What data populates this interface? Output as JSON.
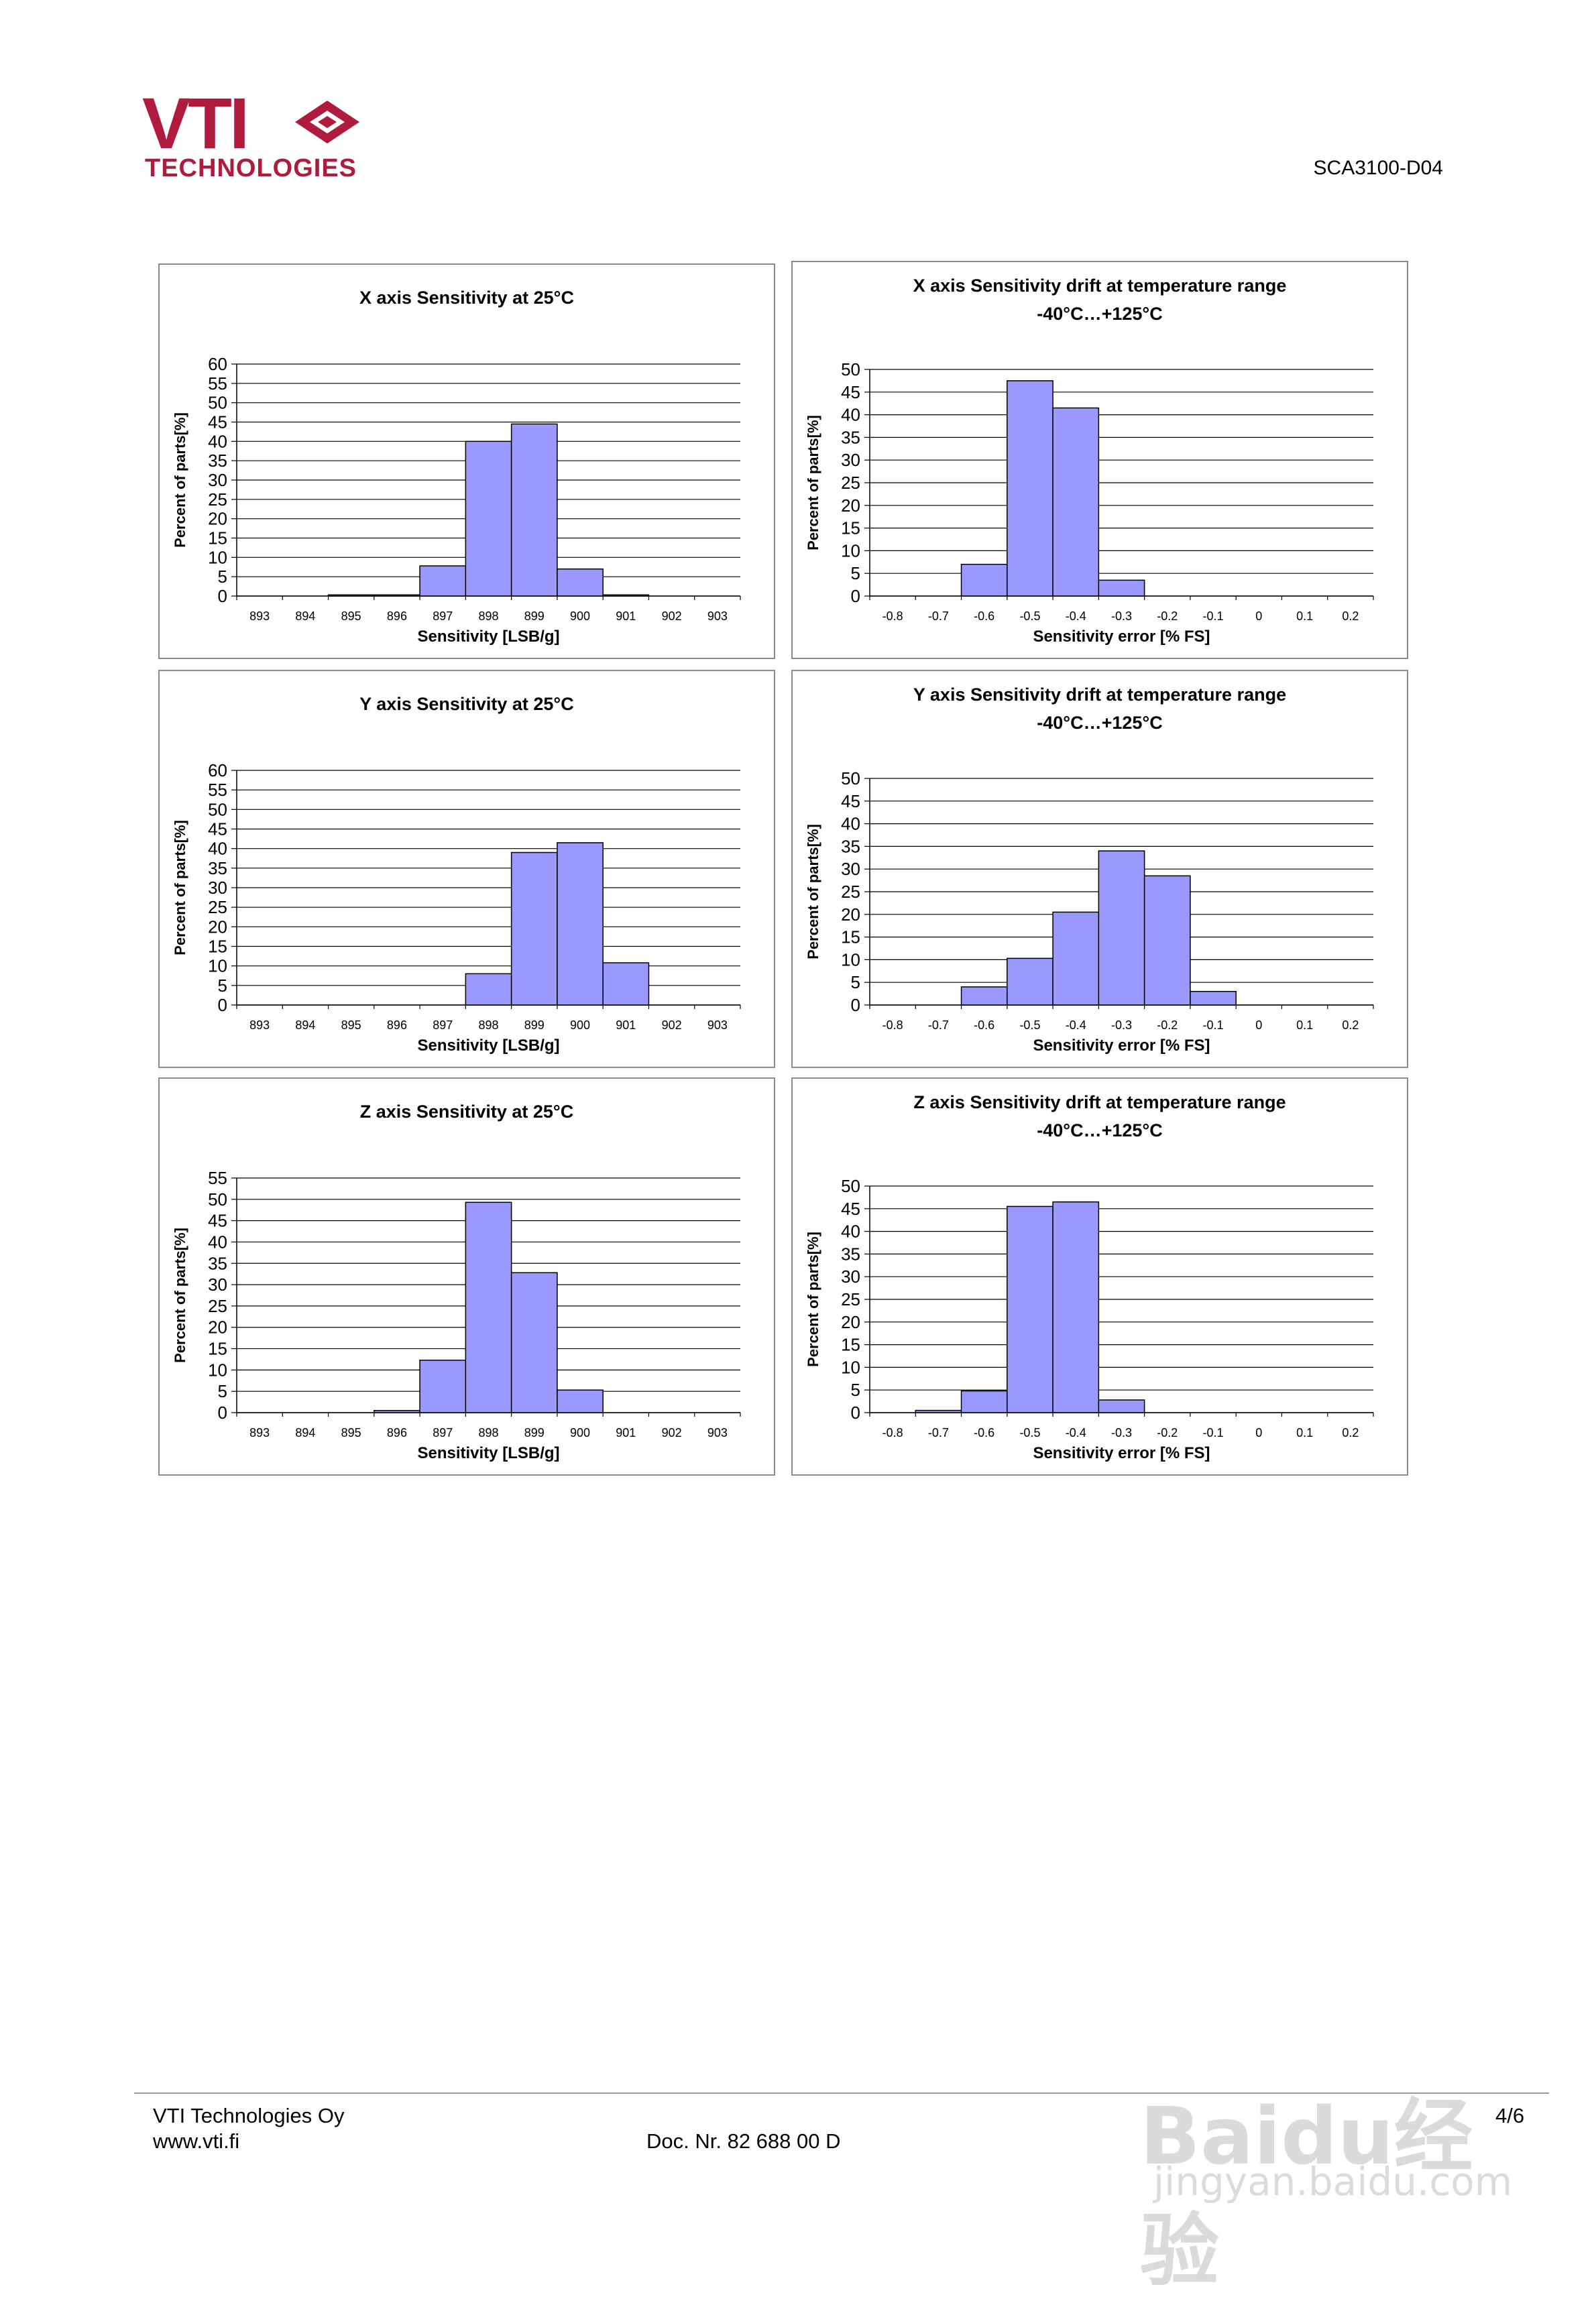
{
  "header": {
    "logo_text": "VTI",
    "logo_sub": "TECHNOLOGIES",
    "doc_id": "SCA3100-D04",
    "brand_color": "#b01a3c"
  },
  "footer": {
    "company": "VTI Technologies Oy",
    "website": "www.vti.fi",
    "doc_number": "Doc. Nr. 82 688 00 D",
    "page": "4/6"
  },
  "watermark": {
    "main": "Baidu经验",
    "sub": "jingyan.baidu.com"
  },
  "colors": {
    "bar_fill": "#9999ff",
    "bar_stroke": "#000000",
    "grid": "#000000"
  },
  "chart_data": [
    {
      "type": "bar",
      "title": "X axis Sensitivity at 25°C",
      "title2": "",
      "xlabel": "Sensitivity  [LSB/g]",
      "ylabel": "Percent of parts[%]",
      "categories": [
        "893",
        "894",
        "895",
        "896",
        "897",
        "898",
        "899",
        "900",
        "901",
        "902",
        "903"
      ],
      "values": [
        0,
        0,
        0.3,
        0.3,
        7.8,
        40,
        44.5,
        7,
        0.3,
        0,
        0
      ],
      "ylim": [
        0,
        60
      ],
      "ystep": 5
    },
    {
      "type": "bar",
      "title": "X axis Sensitivity drift at temperature range",
      "title2": "-40°C…+125°C",
      "xlabel": "Sensitivity error [% FS]",
      "ylabel": "Percent of parts[%]",
      "categories": [
        "-0.8",
        "-0.7",
        "-0.6",
        "-0.5",
        "-0.4",
        "-0.3",
        "-0.2",
        "-0.1",
        "0",
        "0.1",
        "0.2"
      ],
      "values": [
        0,
        0,
        7,
        47.5,
        41.5,
        3.5,
        0,
        0,
        0,
        0,
        0
      ],
      "ylim": [
        0,
        50
      ],
      "ystep": 5
    },
    {
      "type": "bar",
      "title": "Y axis Sensitivity at 25°C",
      "title2": "",
      "xlabel": "Sensitivity [LSB/g]",
      "ylabel": "Percent of parts[%]",
      "categories": [
        "893",
        "894",
        "895",
        "896",
        "897",
        "898",
        "899",
        "900",
        "901",
        "902",
        "903"
      ],
      "values": [
        0,
        0,
        0,
        0,
        0,
        8,
        39,
        41.5,
        10.8,
        0,
        0
      ],
      "ylim": [
        0,
        60
      ],
      "ystep": 5
    },
    {
      "type": "bar",
      "title": "Y axis Sensitivity drift at temperature range",
      "title2": "-40°C…+125°C",
      "xlabel": "Sensitivity error [% FS]",
      "ylabel": "Percent of parts[%]",
      "categories": [
        "-0.8",
        "-0.7",
        "-0.6",
        "-0.5",
        "-0.4",
        "-0.3",
        "-0.2",
        "-0.1",
        "0",
        "0.1",
        "0.2"
      ],
      "values": [
        0,
        0,
        4,
        10.3,
        20.5,
        34,
        28.5,
        3,
        0,
        0,
        0
      ],
      "ylim": [
        0,
        50
      ],
      "ystep": 5
    },
    {
      "type": "bar",
      "title": "Z axis Sensitivity at 25°C",
      "title2": "",
      "xlabel": "Sensitivity [LSB/g]",
      "ylabel": "Percent of parts[%]",
      "categories": [
        "893",
        "894",
        "895",
        "896",
        "897",
        "898",
        "899",
        "900",
        "901",
        "902",
        "903"
      ],
      "values": [
        0,
        0,
        0,
        0.5,
        12.3,
        49.3,
        32.8,
        5.3,
        0,
        0,
        0
      ],
      "ylim": [
        0,
        55
      ],
      "ystep": 5
    },
    {
      "type": "bar",
      "title": "Z axis Sensitivity drift at temperature range",
      "title2": "-40°C…+125°C",
      "xlabel": "Sensitivity error [% FS]",
      "ylabel": "Percent of parts[%]",
      "categories": [
        "-0.8",
        "-0.7",
        "-0.6",
        "-0.5",
        "-0.4",
        "-0.3",
        "-0.2",
        "-0.1",
        "0",
        "0.1",
        "0.2"
      ],
      "values": [
        0,
        0.5,
        4.8,
        45.5,
        46.5,
        2.8,
        0,
        0,
        0,
        0,
        0
      ],
      "ylim": [
        0,
        50
      ],
      "ystep": 5
    }
  ]
}
